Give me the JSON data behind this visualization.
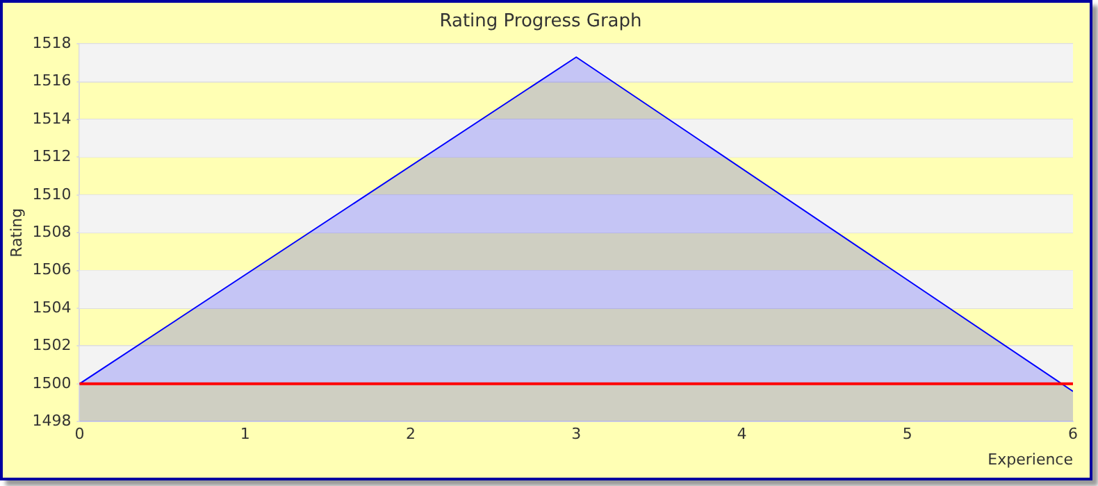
{
  "chart_data": {
    "type": "area",
    "title": "Rating Progress Graph",
    "xlabel": "Experience",
    "ylabel": "Rating",
    "x": [
      0,
      3,
      6
    ],
    "series": [
      {
        "color": "#0000ff",
        "values": [
          1500,
          1517.3,
          1499.6
        ]
      }
    ],
    "xlim": [
      0,
      6
    ],
    "xticks": [
      0,
      1,
      2,
      3,
      4,
      5,
      6
    ],
    "ylim": [
      1498,
      1518
    ],
    "yticks": [
      1498,
      1500,
      1502,
      1504,
      1506,
      1508,
      1510,
      1512,
      1514,
      1516,
      1518
    ],
    "ref_lines": [
      {
        "axis": "y",
        "value": 1500,
        "color": "#ff0000"
      }
    ],
    "grid": "y",
    "legend": false,
    "marker": "none",
    "line_style": "solid"
  }
}
